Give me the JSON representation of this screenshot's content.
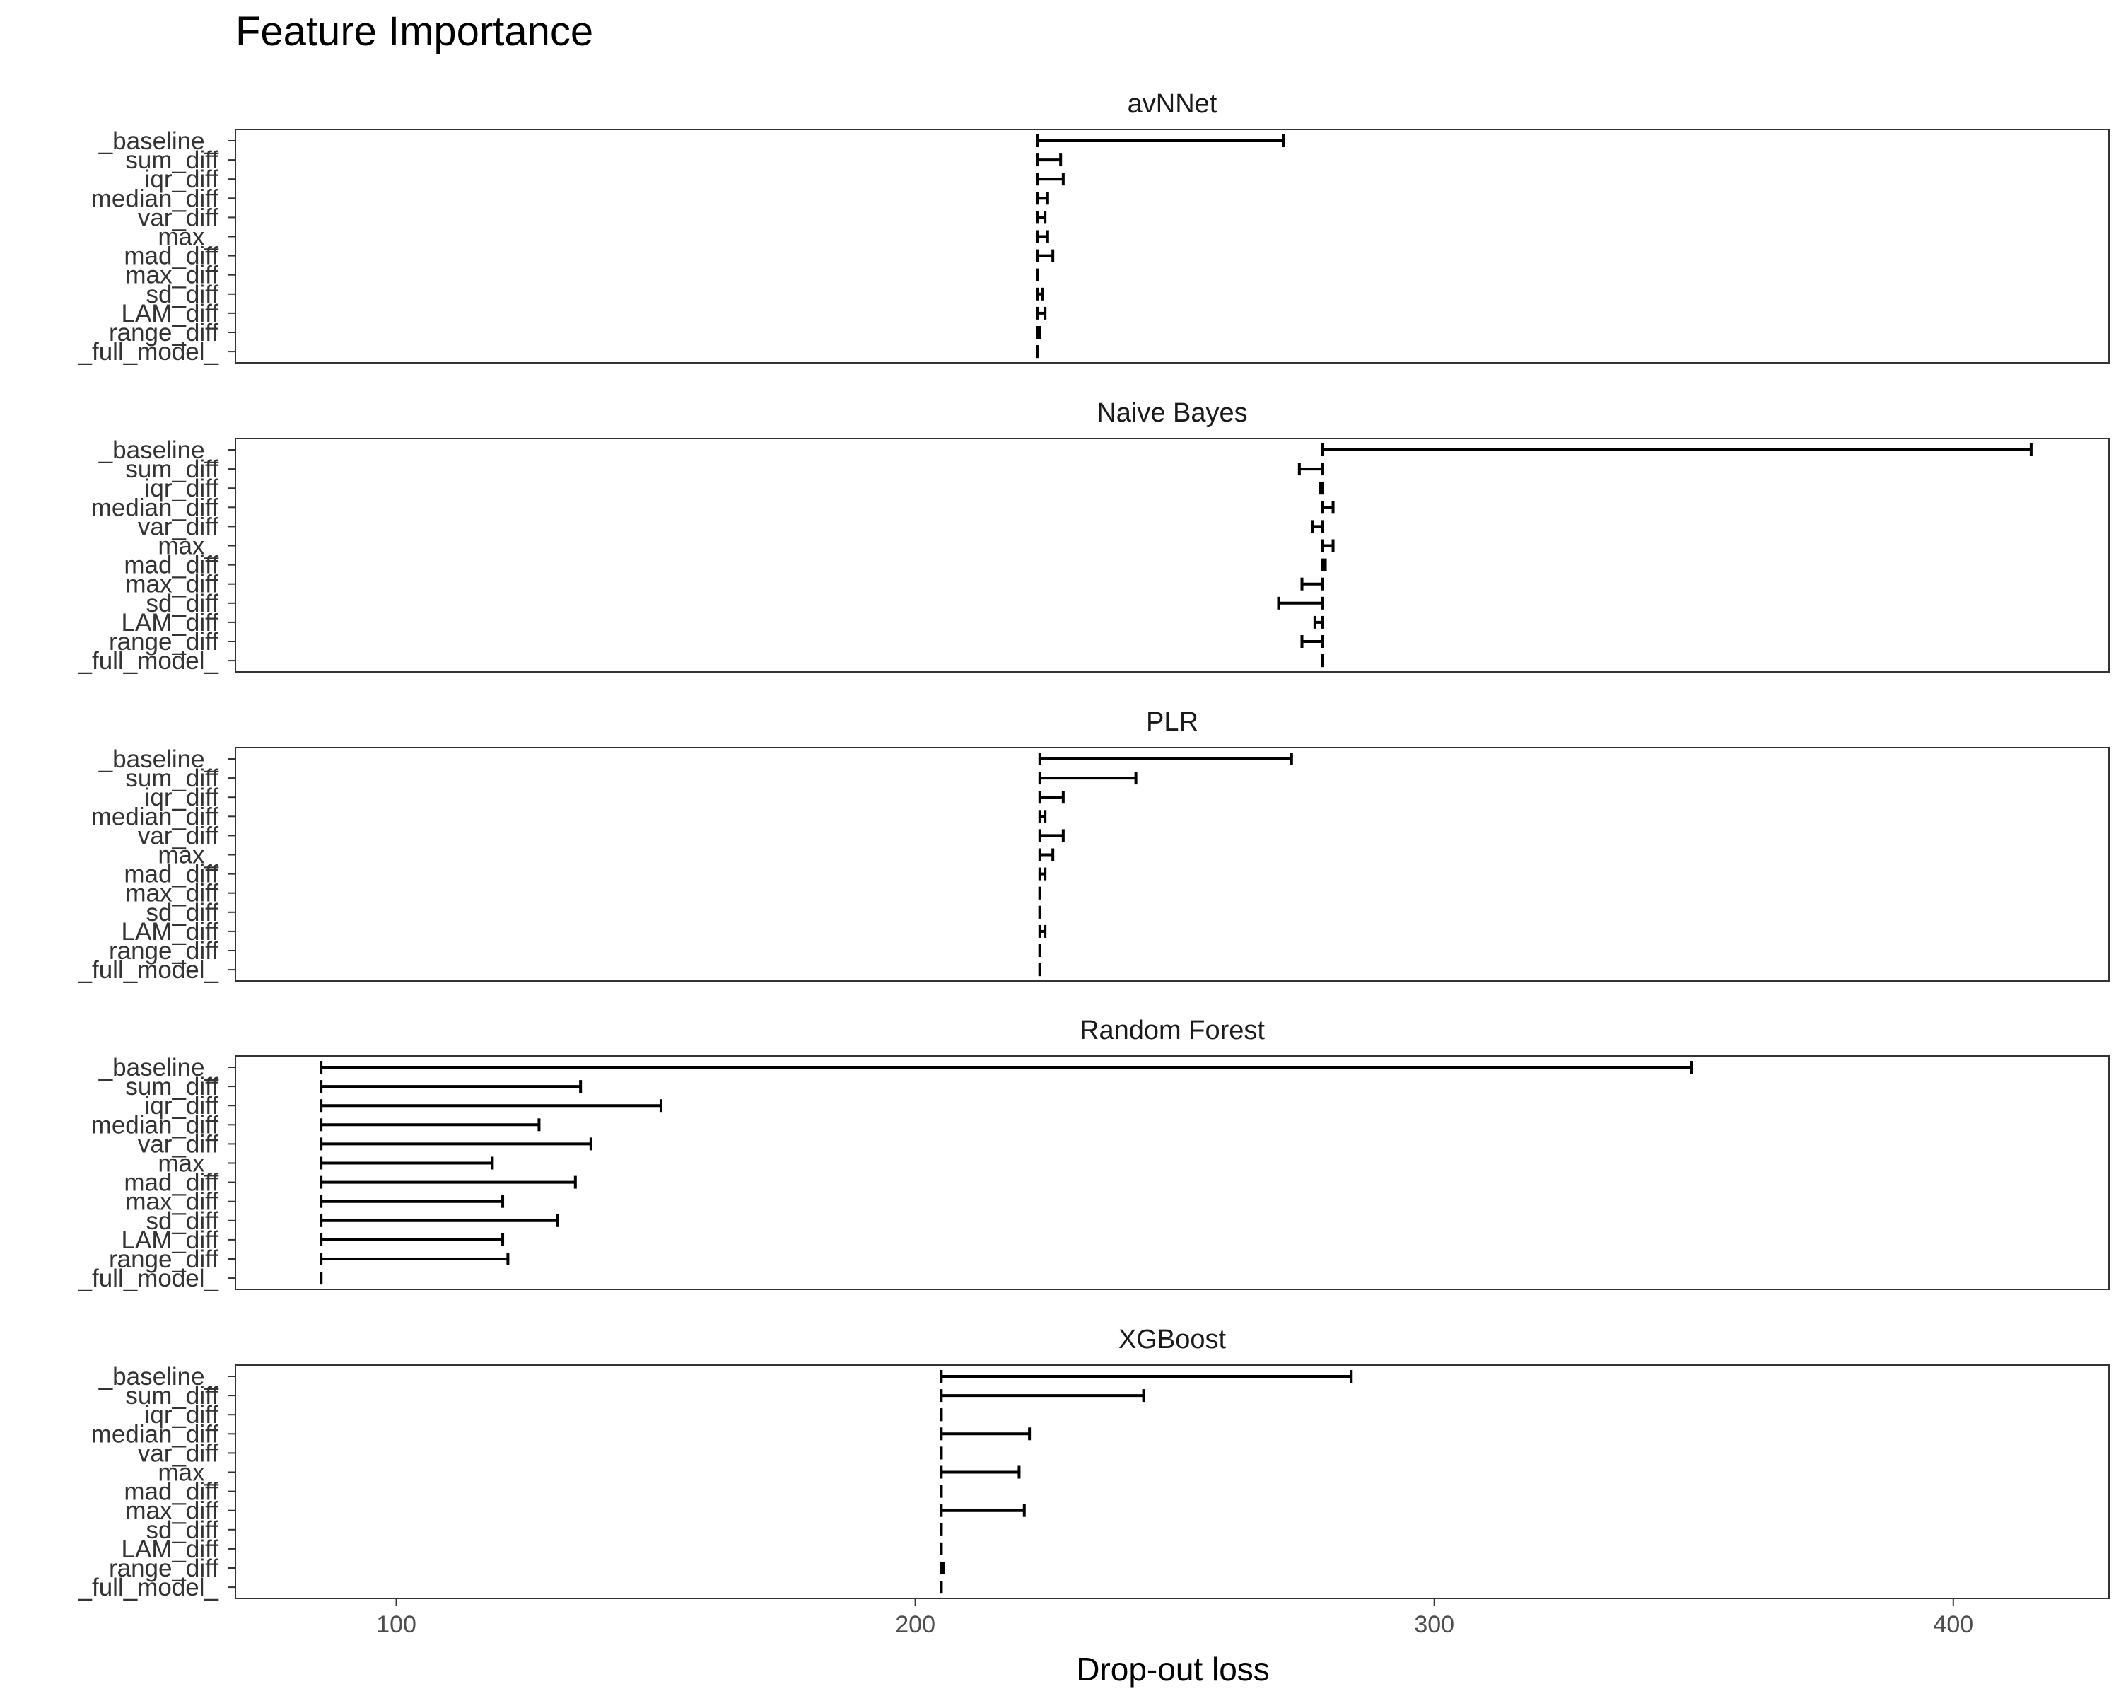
{
  "chart_data": {
    "type": "bar",
    "title": "Feature Importance",
    "xlabel": "Drop-out loss",
    "ylabel": "",
    "xlim": [
      69,
      430
    ],
    "x_ticks": [
      100,
      200,
      300,
      400
    ],
    "grid": false,
    "legend": "none",
    "categories": [
      "_baseline_",
      "sum_diff",
      "iqr_diff",
      "median_diff",
      "var_diff",
      "max_",
      "mad_diff",
      "max_diff",
      "sd_diff",
      "LAM_diff",
      "range_diff",
      "_full_model_"
    ],
    "panels": [
      {
        "name": "avNNet",
        "full_model": 223.5,
        "values": [
          271,
          228,
          228.5,
          225.5,
          225,
          225.5,
          226.5,
          223.5,
          224.5,
          225,
          224,
          223.5
        ]
      },
      {
        "name": "Naive Bayes",
        "full_model": 278.5,
        "values": [
          415,
          274,
          278,
          280.5,
          276.5,
          280.5,
          279,
          274.5,
          270,
          277,
          274.5,
          278.5
        ]
      },
      {
        "name": "PLR",
        "full_model": 224,
        "values": [
          272.5,
          242.5,
          228.5,
          225,
          228.5,
          226.5,
          225,
          224,
          224,
          225,
          224,
          224
        ]
      },
      {
        "name": "Random Forest",
        "full_model": 85.5,
        "values": [
          349.5,
          135.5,
          151,
          127.5,
          137.5,
          118.5,
          134.5,
          120.5,
          131,
          120.5,
          121.5,
          85.5
        ]
      },
      {
        "name": "XGBoost",
        "full_model": 205,
        "values": [
          284,
          244,
          205,
          222,
          205,
          220,
          205,
          221,
          205,
          205,
          205.5,
          205
        ]
      }
    ]
  }
}
